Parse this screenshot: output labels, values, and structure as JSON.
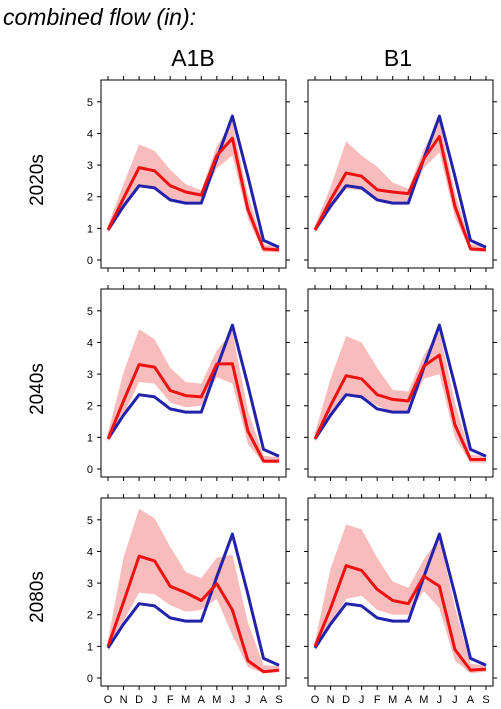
{
  "title": "combined flow (in):",
  "columns": [
    "A1B",
    "B1"
  ],
  "rows": [
    "2020s",
    "2040s",
    "2080s"
  ],
  "colors": {
    "band": "#f9bcbc",
    "scenario": "#ee1111",
    "historical": "#2222aa"
  },
  "chart_data": {
    "type": "line",
    "categories": [
      "O",
      "N",
      "D",
      "J",
      "F",
      "M",
      "A",
      "M",
      "J",
      "J",
      "A",
      "S"
    ],
    "ylim": [
      0,
      5.5
    ],
    "yticks": [
      0,
      1,
      2,
      3,
      4,
      5
    ],
    "historical": [
      0.95,
      1.7,
      2.35,
      2.28,
      1.9,
      1.8,
      1.8,
      3.2,
      4.55,
      2.65,
      0.62,
      0.4
    ],
    "panels": [
      {
        "column": "A1B",
        "row": "2020s",
        "scenario": [
          0.95,
          1.95,
          2.92,
          2.82,
          2.35,
          2.15,
          2.05,
          3.3,
          3.85,
          1.6,
          0.35,
          0.32
        ],
        "band_low": [
          0.85,
          1.6,
          2.4,
          2.25,
          1.95,
          1.85,
          1.85,
          2.9,
          3.3,
          1.3,
          0.25,
          0.25
        ],
        "band_high": [
          1.1,
          2.4,
          3.65,
          3.45,
          2.85,
          2.4,
          2.2,
          3.6,
          4.35,
          2.05,
          0.5,
          0.42
        ]
      },
      {
        "column": "B1",
        "row": "2020s",
        "scenario": [
          0.95,
          1.9,
          2.75,
          2.65,
          2.22,
          2.15,
          2.1,
          3.2,
          3.9,
          1.7,
          0.35,
          0.32
        ],
        "band_low": [
          0.85,
          1.6,
          2.25,
          2.2,
          1.9,
          1.85,
          1.85,
          2.9,
          3.4,
          1.35,
          0.28,
          0.26
        ],
        "band_high": [
          1.1,
          2.3,
          3.75,
          3.3,
          2.95,
          2.45,
          2.25,
          3.5,
          4.4,
          2.15,
          0.5,
          0.45
        ]
      },
      {
        "column": "A1B",
        "row": "2040s",
        "scenario": [
          0.95,
          2.15,
          3.3,
          3.22,
          2.48,
          2.32,
          2.28,
          3.32,
          3.33,
          1.2,
          0.25,
          0.25
        ],
        "band_low": [
          0.85,
          1.7,
          2.75,
          2.7,
          2.1,
          1.95,
          2.0,
          2.9,
          2.7,
          0.8,
          0.18,
          0.18
        ],
        "band_high": [
          1.15,
          3.05,
          4.42,
          4.1,
          3.2,
          2.75,
          2.7,
          3.75,
          4.35,
          1.85,
          0.42,
          0.38
        ]
      },
      {
        "column": "B1",
        "row": "2040s",
        "scenario": [
          0.95,
          2.0,
          2.95,
          2.85,
          2.35,
          2.2,
          2.15,
          3.25,
          3.6,
          1.4,
          0.3,
          0.3
        ],
        "band_low": [
          0.85,
          1.6,
          2.3,
          2.3,
          2.0,
          1.8,
          1.8,
          2.85,
          3.0,
          1.0,
          0.2,
          0.2
        ],
        "band_high": [
          1.15,
          2.85,
          4.2,
          4.0,
          3.2,
          2.5,
          2.45,
          3.6,
          4.35,
          2.1,
          0.45,
          0.4
        ]
      },
      {
        "column": "A1B",
        "row": "2080s",
        "scenario": [
          1.0,
          2.4,
          3.85,
          3.7,
          2.9,
          2.7,
          2.45,
          2.98,
          2.15,
          0.55,
          0.2,
          0.25
        ],
        "band_low": [
          0.85,
          1.8,
          2.7,
          2.65,
          2.3,
          2.1,
          2.15,
          2.5,
          1.35,
          0.35,
          0.15,
          0.18
        ],
        "band_high": [
          1.2,
          3.8,
          5.35,
          5.05,
          4.15,
          3.35,
          3.15,
          3.8,
          3.9,
          1.75,
          0.4,
          0.38
        ]
      },
      {
        "column": "B1",
        "row": "2080s",
        "scenario": [
          1.0,
          2.2,
          3.55,
          3.4,
          2.8,
          2.45,
          2.35,
          3.22,
          2.9,
          0.9,
          0.25,
          0.28
        ],
        "band_low": [
          0.85,
          1.7,
          2.5,
          2.6,
          2.15,
          2.0,
          2.0,
          2.75,
          2.2,
          0.55,
          0.15,
          0.2
        ],
        "band_high": [
          1.15,
          3.45,
          4.85,
          4.7,
          3.8,
          3.05,
          2.85,
          3.75,
          4.45,
          2.25,
          0.45,
          0.4
        ]
      }
    ]
  }
}
